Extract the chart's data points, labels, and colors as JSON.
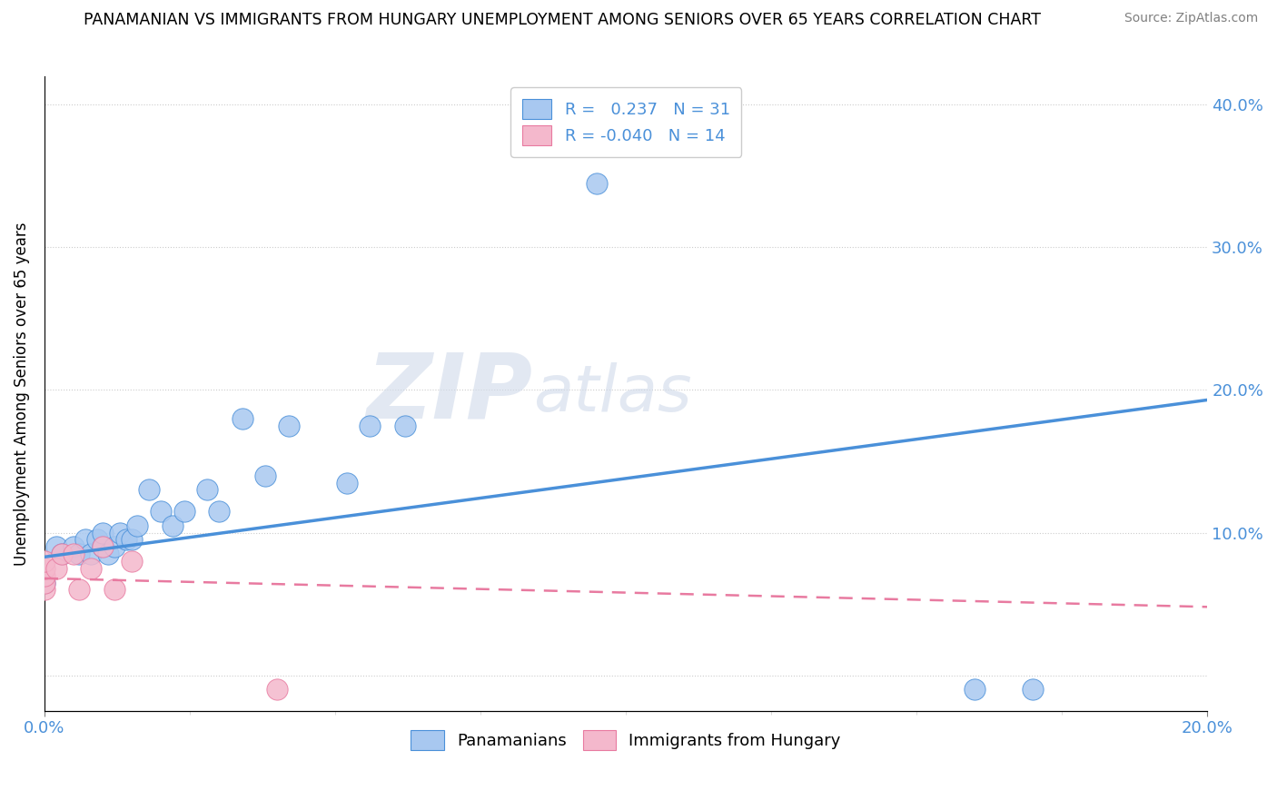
{
  "title": "PANAMANIAN VS IMMIGRANTS FROM HUNGARY UNEMPLOYMENT AMONG SENIORS OVER 65 YEARS CORRELATION CHART",
  "source": "Source: ZipAtlas.com",
  "ylabel": "Unemployment Among Seniors over 65 years",
  "xlim": [
    0.0,
    0.2
  ],
  "ylim": [
    -0.025,
    0.42
  ],
  "xtick_positions": [
    0.0,
    0.2
  ],
  "xtick_labels": [
    "0.0%",
    "20.0%"
  ],
  "ytick_positions": [
    0.0,
    0.1,
    0.2,
    0.3,
    0.4
  ],
  "ytick_labels": [
    "",
    "10.0%",
    "20.0%",
    "30.0%",
    "40.0%"
  ],
  "grid_yticks": [
    0.0,
    0.1,
    0.2,
    0.3,
    0.4
  ],
  "blue_R": 0.237,
  "blue_N": 31,
  "pink_R": -0.04,
  "pink_N": 14,
  "blue_color": "#a8c8f0",
  "pink_color": "#f4b8cc",
  "blue_line_color": "#4a90d9",
  "pink_line_color": "#e87aa0",
  "blue_points_x": [
    0.0,
    0.002,
    0.003,
    0.005,
    0.006,
    0.007,
    0.008,
    0.009,
    0.01,
    0.01,
    0.011,
    0.012,
    0.013,
    0.014,
    0.015,
    0.016,
    0.018,
    0.02,
    0.022,
    0.024,
    0.028,
    0.03,
    0.034,
    0.038,
    0.042,
    0.052,
    0.056,
    0.062,
    0.095,
    0.16,
    0.17
  ],
  "blue_points_y": [
    0.065,
    0.09,
    0.085,
    0.09,
    0.085,
    0.095,
    0.085,
    0.095,
    0.09,
    0.1,
    0.085,
    0.09,
    0.1,
    0.095,
    0.095,
    0.105,
    0.13,
    0.115,
    0.105,
    0.115,
    0.13,
    0.115,
    0.18,
    0.14,
    0.175,
    0.135,
    0.175,
    0.175,
    0.345,
    -0.01,
    -0.01
  ],
  "pink_points_x": [
    0.0,
    0.0,
    0.0,
    0.0,
    0.0,
    0.002,
    0.003,
    0.005,
    0.006,
    0.008,
    0.01,
    0.012,
    0.015,
    0.04
  ],
  "pink_points_y": [
    0.06,
    0.065,
    0.07,
    0.075,
    0.08,
    0.075,
    0.085,
    0.085,
    0.06,
    0.075,
    0.09,
    0.06,
    0.08,
    -0.01
  ],
  "blue_line_x": [
    0.0,
    0.2
  ],
  "blue_line_y": [
    0.083,
    0.193
  ],
  "pink_line_x": [
    0.0,
    0.2
  ],
  "pink_line_y": [
    0.068,
    0.048
  ]
}
